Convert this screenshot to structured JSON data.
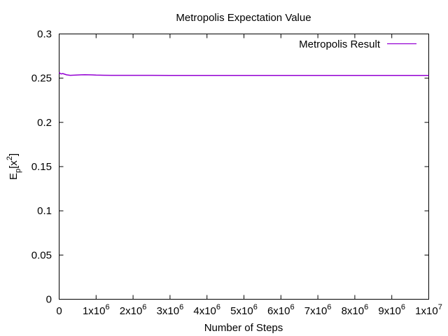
{
  "chart_data": {
    "type": "line",
    "title": "Metropolis Expectation Value",
    "xlabel": "Number of Steps",
    "ylabel": {
      "base": "E",
      "sub": "p",
      "open": "[x",
      "sup": "2",
      "close": "]"
    },
    "xlim": [
      0,
      10000000
    ],
    "ylim": [
      0,
      0.3
    ],
    "x_ticks": [
      {
        "value": 0,
        "mantissa": "0",
        "exp": ""
      },
      {
        "value": 1000000,
        "mantissa": "1x10",
        "exp": "6"
      },
      {
        "value": 2000000,
        "mantissa": "2x10",
        "exp": "6"
      },
      {
        "value": 3000000,
        "mantissa": "3x10",
        "exp": "6"
      },
      {
        "value": 4000000,
        "mantissa": "4x10",
        "exp": "6"
      },
      {
        "value": 5000000,
        "mantissa": "5x10",
        "exp": "6"
      },
      {
        "value": 6000000,
        "mantissa": "6x10",
        "exp": "6"
      },
      {
        "value": 7000000,
        "mantissa": "7x10",
        "exp": "6"
      },
      {
        "value": 8000000,
        "mantissa": "8x10",
        "exp": "6"
      },
      {
        "value": 9000000,
        "mantissa": "9x10",
        "exp": "6"
      },
      {
        "value": 10000000,
        "mantissa": "1x10",
        "exp": "7"
      }
    ],
    "y_ticks": [
      {
        "value": 0,
        "label": "0"
      },
      {
        "value": 0.05,
        "label": "0.05"
      },
      {
        "value": 0.1,
        "label": "0.1"
      },
      {
        "value": 0.15,
        "label": "0.15"
      },
      {
        "value": 0.2,
        "label": "0.2"
      },
      {
        "value": 0.25,
        "label": "0.25"
      },
      {
        "value": 0.3,
        "label": "0.3"
      }
    ],
    "grid": false,
    "legend": {
      "position": "top-right"
    },
    "series": [
      {
        "name": "Metropolis Result",
        "color": "#9400d3",
        "x": [
          0,
          20000,
          50000,
          100000,
          150000,
          200000,
          300000,
          400000,
          500000,
          600000,
          700000,
          800000,
          900000,
          1000000,
          1200000,
          1400000,
          1600000,
          2000000,
          2500000,
          3000000,
          4000000,
          5000000,
          6000000,
          7000000,
          8000000,
          9000000,
          10000000
        ],
        "y": [
          0.2565,
          0.2555,
          0.2548,
          0.2552,
          0.2545,
          0.2538,
          0.2532,
          0.2534,
          0.2536,
          0.2538,
          0.2539,
          0.2538,
          0.2537,
          0.2535,
          0.2533,
          0.2532,
          0.2532,
          0.2532,
          0.2532,
          0.2531,
          0.2531,
          0.2531,
          0.2531,
          0.2531,
          0.2531,
          0.2531,
          0.2531
        ]
      }
    ]
  }
}
